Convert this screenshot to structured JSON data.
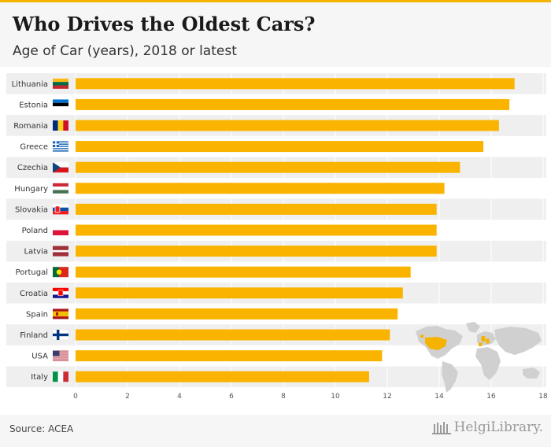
{
  "header": {
    "title": "Who Drives the Oldest Cars?",
    "subtitle": "Age of Car (years), 2018 or latest"
  },
  "footer": {
    "source": "Source: ACEA",
    "brand": "HelgiLibrary."
  },
  "colors": {
    "bar": "#fab400",
    "header_bg": "#f6f6f6",
    "row_band": "#efefef",
    "map_land": "#d0d0d0",
    "map_highlight": "#f5b300"
  },
  "chart_data": {
    "type": "bar",
    "orientation": "horizontal",
    "title": "Who Drives the Oldest Cars?",
    "subtitle": "Age of Car (years), 2018 or latest",
    "categories": [
      "Lithuania",
      "Estonia",
      "Romania",
      "Greece",
      "Czechia",
      "Hungary",
      "Slovakia",
      "Poland",
      "Latvia",
      "Portugal",
      "Croatia",
      "Spain",
      "Finland",
      "USA",
      "Italy"
    ],
    "flags": [
      "lithuania-flag-icon",
      "estonia-flag-icon",
      "romania-flag-icon",
      "greece-flag-icon",
      "czechia-flag-icon",
      "hungary-flag-icon",
      "slovakia-flag-icon",
      "poland-flag-icon",
      "latvia-flag-icon",
      "portugal-flag-icon",
      "croatia-flag-icon",
      "spain-flag-icon",
      "finland-flag-icon",
      "usa-flag-icon",
      "italy-flag-icon"
    ],
    "values": [
      16.9,
      16.7,
      16.3,
      15.7,
      14.8,
      14.2,
      13.9,
      13.9,
      13.9,
      12.9,
      12.6,
      12.4,
      12.1,
      11.8,
      11.3
    ],
    "xlim": [
      0,
      18
    ],
    "xticks": [
      "0",
      "2",
      "4",
      "6",
      "8",
      "10",
      "12",
      "14",
      "16",
      "18"
    ],
    "grid": true,
    "legend": "none"
  }
}
